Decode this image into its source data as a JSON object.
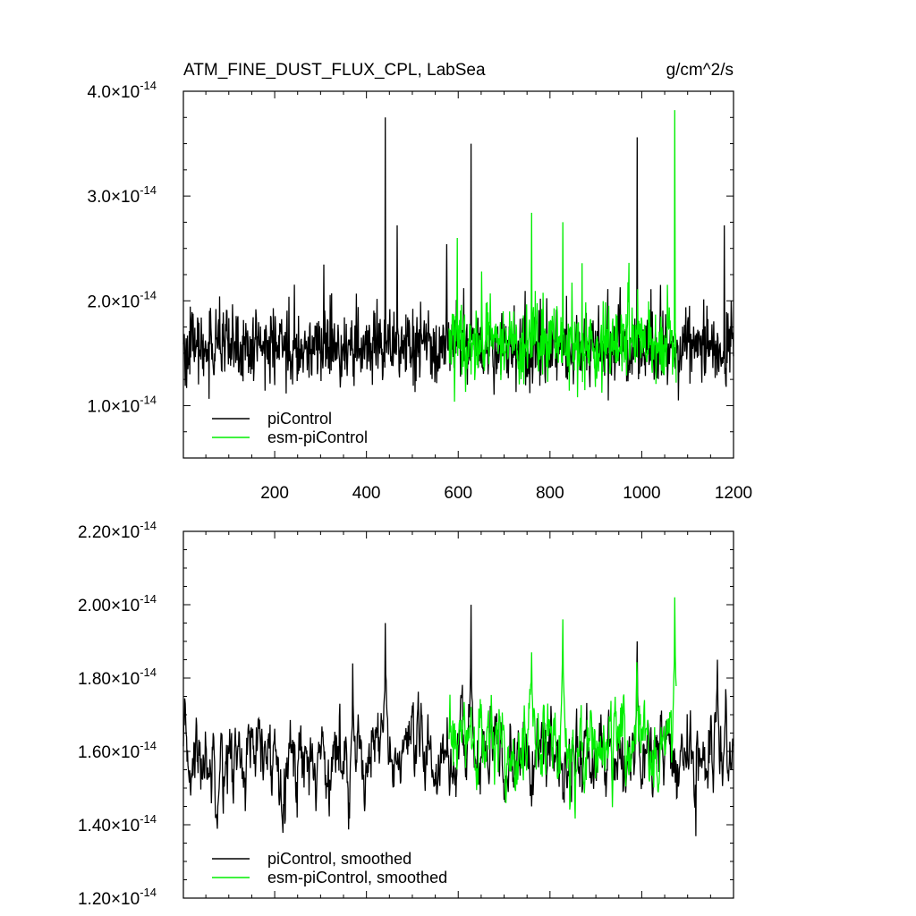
{
  "header": {
    "title": "ATM_FINE_DUST_FLUX_CPL, LabSea",
    "units": "g/cm^2/s"
  },
  "colors": {
    "piControl": "#000000",
    "esm_piControl": "#00ee00",
    "axis": "#000000",
    "background": "#ffffff"
  },
  "chart_data": [
    {
      "type": "line",
      "panel": "top",
      "xlim": [
        1,
        1200
      ],
      "ylim": [
        0.5,
        4.0
      ],
      "y_exponent": "-14",
      "x_ticks": [
        200,
        400,
        600,
        800,
        1000,
        1200
      ],
      "y_ticks": [
        1.0,
        2.0,
        3.0,
        4.0
      ],
      "y_tick_labels": [
        "1.0",
        "2.0",
        "3.0",
        "4.0"
      ],
      "legend": [
        "piControl",
        "esm-piControl"
      ],
      "legend_position": "bottom-left",
      "series": [
        {
          "name": "piControl",
          "x": [
            1,
            1200
          ],
          "approx_mean": 1.55,
          "approx_range": [
            1.05,
            3.75
          ],
          "spikes": [
            [
              441,
              3.75
            ],
            [
              628,
              3.5
            ],
            [
              990,
              3.56
            ],
            [
              1180,
              2.72
            ],
            [
              467,
              2.72
            ],
            [
              575,
              2.54
            ]
          ]
        },
        {
          "name": "esm-piControl",
          "x": [
            580,
            1075
          ],
          "approx_mean": 1.6,
          "approx_range": [
            1.0,
            3.82
          ],
          "spikes": [
            [
              1072,
              3.82
            ],
            [
              760,
              2.84
            ],
            [
              828,
              2.75
            ],
            [
              598,
              2.6
            ]
          ]
        }
      ]
    },
    {
      "type": "line",
      "panel": "bottom",
      "xlim": [
        1,
        1200
      ],
      "ylim": [
        1.2,
        2.2
      ],
      "y_exponent": "-14",
      "y_ticks": [
        1.2,
        1.4,
        1.6,
        1.8,
        2.0,
        2.2
      ],
      "y_tick_labels": [
        "1.20",
        "1.40",
        "1.60",
        "1.80",
        "2.00",
        "2.20"
      ],
      "legend": [
        "piControl, smoothed",
        "esm-piControl, smoothed"
      ],
      "legend_position": "bottom-left",
      "series": [
        {
          "name": "piControl, smoothed",
          "x": [
            1,
            1200
          ],
          "approx_mean": 1.58,
          "approx_range": [
            1.35,
            2.0
          ],
          "peaks": [
            [
              441,
              1.95
            ],
            [
              628,
              2.0
            ],
            [
              990,
              1.9
            ],
            [
              1165,
              1.85
            ],
            [
              370,
              1.84
            ]
          ]
        },
        {
          "name": "esm-piControl, smoothed",
          "x": [
            580,
            1075
          ],
          "approx_mean": 1.62,
          "approx_range": [
            1.4,
            2.02
          ],
          "peaks": [
            [
              1072,
              2.02
            ],
            [
              828,
              1.96
            ],
            [
              760,
              1.87
            ]
          ]
        }
      ]
    }
  ]
}
